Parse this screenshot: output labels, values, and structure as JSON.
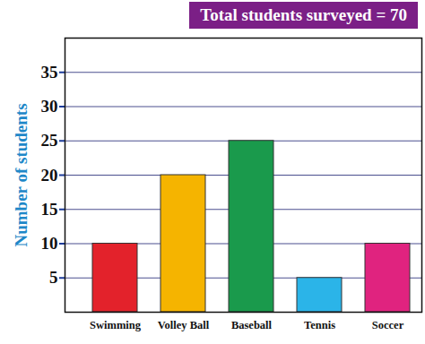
{
  "chart_data": {
    "type": "bar",
    "title": "Total students surveyed = 70",
    "y_label": "Number of students",
    "categories": [
      "Swimming",
      "Volley Ball",
      "Baseball",
      "Tennis",
      "Soccer"
    ],
    "values": [
      10,
      20,
      25,
      5,
      10
    ],
    "colors": [
      "#e3222b",
      "#f5b400",
      "#1a9a4c",
      "#2bb4e8",
      "#e0237f"
    ],
    "ylim": [
      0,
      40
    ],
    "yticks": [
      5,
      10,
      15,
      20,
      25,
      30,
      35
    ],
    "grid": true
  }
}
